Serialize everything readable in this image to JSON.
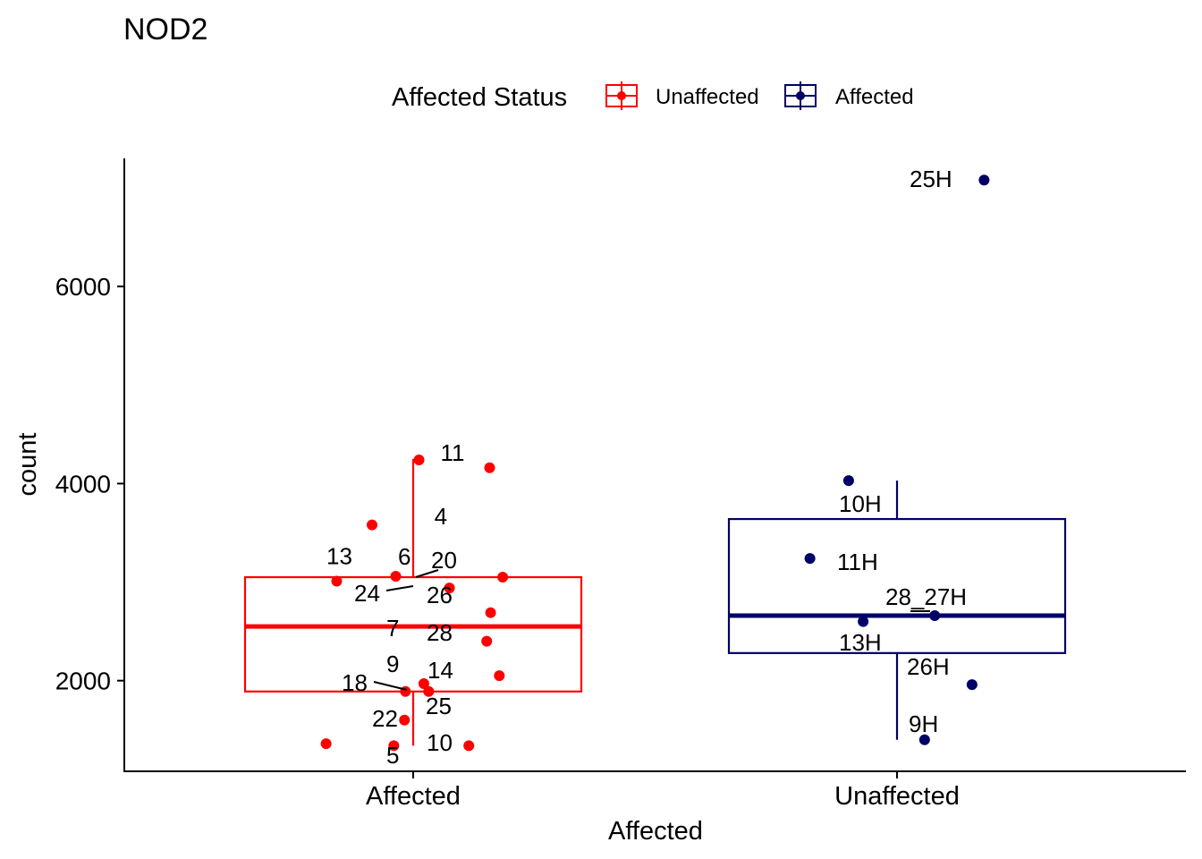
{
  "chart_data": {
    "type": "boxplot",
    "title": "NOD2",
    "xlabel": "Affected",
    "ylabel": "count",
    "categories": [
      "Affected",
      "Unaffected"
    ],
    "yticks": [
      2000,
      4000,
      6000
    ],
    "ylim": [
      1080,
      7300
    ],
    "grid": false,
    "legend": {
      "title": "Affected Status",
      "position": "top",
      "entries": [
        {
          "name": "Unaffected",
          "color": "#FF0000"
        },
        {
          "name": "Affected",
          "color": "#000066"
        }
      ]
    },
    "boxes": [
      {
        "category": "Affected",
        "group": "Unaffected",
        "color": "#FF0000",
        "whisker_low": 1340,
        "q1": 1890,
        "median": 2550,
        "q3": 3050,
        "whisker_high": 4250
      },
      {
        "category": "Unaffected",
        "group": "Affected",
        "color": "#000066",
        "whisker_low": 1400,
        "q1": 2280,
        "median": 2660,
        "q3": 3640,
        "whisker_high": 4030
      }
    ],
    "series": [
      {
        "name": "Unaffected",
        "category": "Affected",
        "color": "#FF0000",
        "points": [
          {
            "label": "11",
            "jitter": 0.012,
            "y": 4240
          },
          {
            "label": "",
            "jitter": 0.158,
            "y": 4160
          },
          {
            "label": "13",
            "jitter": -0.085,
            "y": 3580
          },
          {
            "label": "4",
            "jitter": 0.075,
            "y": 2940
          },
          {
            "label": "6",
            "jitter": -0.036,
            "y": 3060
          },
          {
            "label": "20",
            "jitter": 0.185,
            "y": 3050
          },
          {
            "label": "24",
            "jitter": -0.158,
            "y": 3010
          },
          {
            "label": "26",
            "jitter": 0.16,
            "y": 2690
          },
          {
            "label": "7",
            "jitter": 0.152,
            "y": 2400
          },
          {
            "label": "28",
            "jitter": 0.178,
            "y": 2050
          },
          {
            "label": "9",
            "jitter": 0.022,
            "y": 1970
          },
          {
            "label": "14",
            "jitter": 0.032,
            "y": 1890
          },
          {
            "label": "18",
            "jitter": -0.016,
            "y": 1890
          },
          {
            "label": "25",
            "jitter": -0.018,
            "y": 1600
          },
          {
            "label": "22",
            "jitter": -0.18,
            "y": 1360
          },
          {
            "label": "10",
            "jitter": 0.115,
            "y": 1340
          },
          {
            "label": "5",
            "jitter": -0.04,
            "y": 1340
          }
        ]
      },
      {
        "name": "Affected",
        "category": "Unaffected",
        "color": "#000066",
        "points": [
          {
            "label": "25H",
            "jitter": 0.18,
            "y": 7080
          },
          {
            "label": "10H",
            "jitter": -0.1,
            "y": 4030
          },
          {
            "label": "11H",
            "jitter": -0.18,
            "y": 3240
          },
          {
            "label": "28_27H",
            "jitter": 0.078,
            "y": 2660
          },
          {
            "label": "13H",
            "jitter": -0.07,
            "y": 2600
          },
          {
            "label": "26H",
            "jitter": 0.155,
            "y": 1960
          },
          {
            "label": "9H",
            "jitter": 0.057,
            "y": 1400
          }
        ]
      }
    ]
  }
}
